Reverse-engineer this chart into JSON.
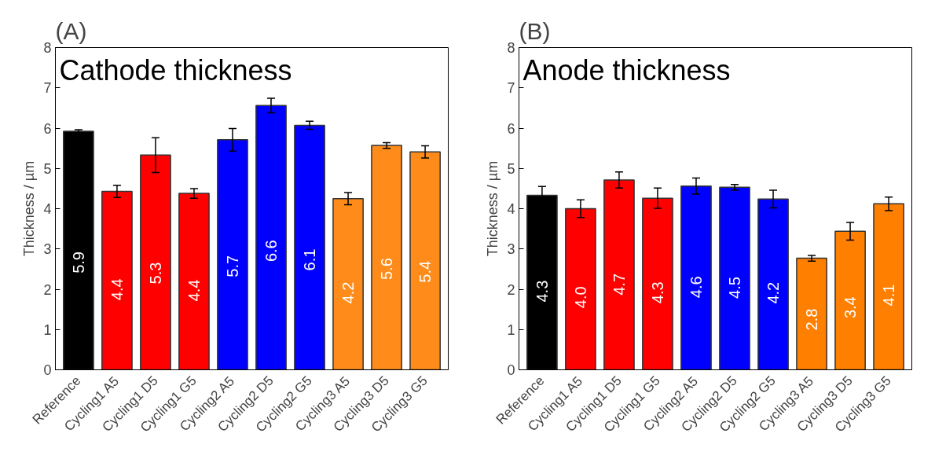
{
  "chart_data": [
    {
      "type": "bar",
      "title": "(A)",
      "subtitle": "Cathode thickness",
      "ylabel": "Thickness / µm",
      "categories": [
        "Reference",
        "Cycling1 A5",
        "Cycling1 D5",
        "Cycling1 G5",
        "Cycling2 A5",
        "Cycling2 D5",
        "Cycling2 G5",
        "Cycling3 A5",
        "Cycling3 D5",
        "Cycling3 G5"
      ],
      "values": [
        5.92,
        4.43,
        5.33,
        4.38,
        5.71,
        6.56,
        6.07,
        4.25,
        5.57,
        5.41
      ],
      "errors": [
        0.04,
        0.15,
        0.43,
        0.12,
        0.28,
        0.18,
        0.1,
        0.15,
        0.07,
        0.15
      ],
      "value_labels": [
        "5.9",
        "4.4",
        "5.3",
        "4.4",
        "5.7",
        "6.6",
        "6.1",
        "4.2",
        "5.6",
        "5.4"
      ],
      "colors": [
        "#000000",
        "#ff0000",
        "#ff0000",
        "#ff0000",
        "#0000ff",
        "#0000ff",
        "#0000ff",
        "#ff8c1a",
        "#ff8c1a",
        "#ff8c1a"
      ],
      "ylim": [
        0,
        8
      ],
      "yticks": [
        0,
        1,
        2,
        3,
        4,
        5,
        6,
        7,
        8
      ],
      "grid": false
    },
    {
      "type": "bar",
      "title": "(B)",
      "subtitle": "Anode thickness",
      "ylabel": "Thickness / µm",
      "categories": [
        "Reference",
        "Cycling1 A5",
        "Cycling1 D5",
        "Cycling1 G5",
        "Cycling2 A5",
        "Cycling2 D5",
        "Cycling2 G5",
        "Cycling3 A5",
        "Cycling3 D5",
        "Cycling3 G5"
      ],
      "values": [
        4.33,
        4.0,
        4.71,
        4.26,
        4.56,
        4.53,
        4.24,
        2.77,
        3.44,
        4.12
      ],
      "errors": [
        0.22,
        0.22,
        0.2,
        0.25,
        0.2,
        0.07,
        0.22,
        0.07,
        0.22,
        0.17
      ],
      "value_labels": [
        "4.3",
        "4.0",
        "4.7",
        "4.3",
        "4.6",
        "4.5",
        "4.2",
        "2.8",
        "3.4",
        "4.1"
      ],
      "colors": [
        "#000000",
        "#ff0000",
        "#ff0000",
        "#ff0000",
        "#0000ff",
        "#0000ff",
        "#0000ff",
        "#ff7f00",
        "#ff7f00",
        "#ff7f00"
      ],
      "ylim": [
        0,
        8
      ],
      "yticks": [
        0,
        1,
        2,
        3,
        4,
        5,
        6,
        7,
        8
      ],
      "grid": false
    }
  ]
}
